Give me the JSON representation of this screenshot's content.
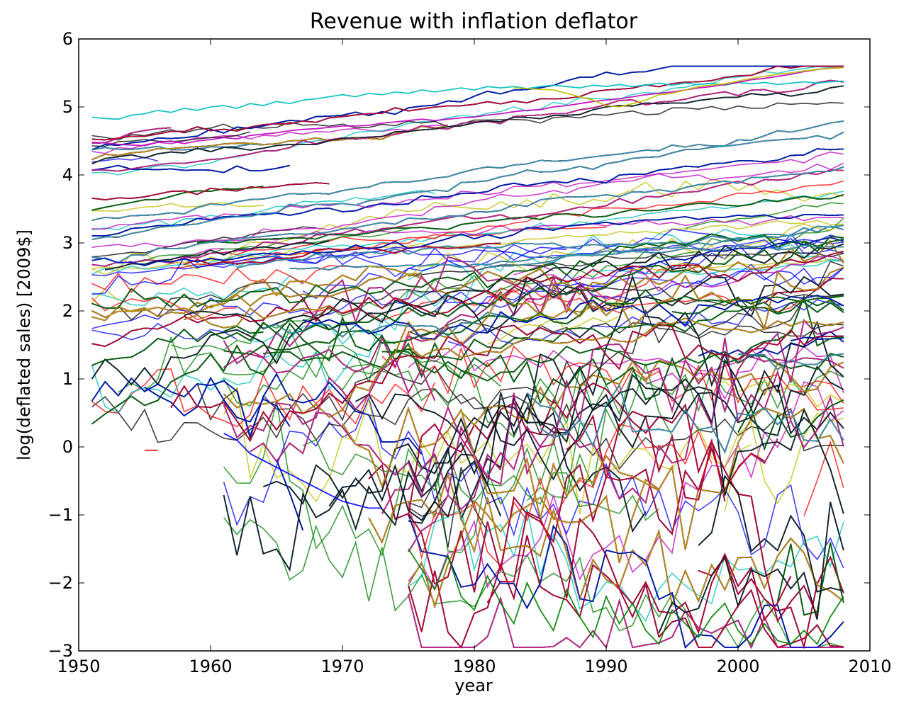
{
  "chart_data": {
    "type": "line",
    "title": "Revenue with inflation deflator",
    "xlabel": "year",
    "ylabel": "log(deflated sales) [2009$]",
    "xlim": [
      1950,
      2010
    ],
    "ylim": [
      -3,
      6
    ],
    "x_ticks": [
      "1950",
      "1960",
      "1970",
      "1980",
      "1990",
      "2000",
      "2010"
    ],
    "y_ticks": [
      "−3",
      "−2",
      "−1",
      "0",
      "1",
      "2",
      "3",
      "4",
      "5",
      "6"
    ],
    "grid": false,
    "legend": "none",
    "series_colors": [
      "#ff0000",
      "#0000ff",
      "#008000",
      "#000000",
      "#00bfbf",
      "#bf00bf",
      "#bfbf00"
    ],
    "series_alpha": 0.75,
    "series_count_approx": 3000,
    "data_range": {
      "first_year": 1951,
      "last_year": 2008,
      "max_value": 5.6,
      "min_value": -2.95
    },
    "series": [
      {
        "start": 1951,
        "end": 2008,
        "values": [
          4.85,
          4.83,
          4.82,
          4.88,
          4.9,
          4.95,
          4.92,
          4.98,
          4.95,
          5.0,
          5.02,
          4.98,
          5.05,
          5.02,
          5.08,
          5.05,
          5.1,
          5.12,
          5.15,
          5.18,
          5.15,
          5.2,
          5.18,
          5.22,
          5.2,
          5.25,
          5.22,
          5.25,
          5.28,
          5.25,
          5.3,
          5.28,
          5.3,
          5.27,
          5.3,
          5.32,
          5.3,
          5.28,
          5.32,
          5.3,
          5.33,
          5.3,
          5.32,
          5.35,
          5.32,
          5.35,
          5.33,
          5.35,
          5.32,
          5.36,
          5.34,
          5.36,
          5.33,
          5.35,
          5.37,
          5.35,
          5.37,
          5.38
        ]
      },
      {
        "start": 1951,
        "end": 2008,
        "values": [
          4.48,
          4.47,
          4.45,
          4.44,
          4.43,
          4.48,
          4.5,
          4.46,
          4.5,
          4.52,
          4.55,
          4.53,
          4.58,
          4.6,
          4.62,
          4.65,
          4.67,
          4.68,
          4.7,
          4.72,
          4.72,
          4.73,
          4.76,
          4.78,
          4.8,
          4.82,
          4.8,
          4.82,
          4.84,
          4.85,
          4.88,
          4.9,
          4.93,
          4.95,
          4.96,
          5.0,
          5.02,
          5.05,
          5.08,
          5.1,
          5.12,
          5.15,
          5.18,
          5.2,
          5.22,
          5.25,
          5.28,
          5.3,
          5.33,
          5.36,
          5.4,
          5.42,
          5.45,
          5.48,
          5.52,
          5.55,
          5.57,
          5.58
        ]
      },
      {
        "start": 1983,
        "end": 2008,
        "values": [
          5.28,
          5.27,
          5.26,
          5.25,
          5.2,
          5.15,
          5.1,
          5.02,
          5.0,
          5.05,
          5.1,
          5.18,
          5.2,
          5.25,
          5.3,
          5.32,
          5.34,
          5.38,
          5.42,
          5.45,
          5.48,
          5.5,
          5.53,
          5.55,
          5.57,
          5.58
        ]
      },
      {
        "start": 1955,
        "end": 1956,
        "values": [
          -0.05,
          -0.05
        ]
      },
      {
        "start": 1961,
        "end": 1973,
        "values": [
          0.2,
          0.1,
          -0.1,
          -0.2,
          -0.3,
          -0.4,
          -0.5,
          -0.6,
          -0.7,
          -0.8,
          -0.85,
          -0.9,
          -0.9
        ]
      },
      {
        "start": 1975,
        "end": 2008,
        "values": [
          -1.5,
          -1.8,
          -2.1,
          -1.6,
          -2.2,
          -2.4,
          -1.9,
          -2.3,
          -2.6,
          -2.0,
          -2.4,
          -2.7,
          -2.1,
          -2.5,
          -2.8,
          -2.2,
          -2.6,
          -2.3,
          -2.7,
          -2.9,
          -2.4,
          -2.6,
          -2.8,
          -2.5,
          -2.3,
          -2.7,
          -2.9,
          -2.6,
          -2.85,
          -2.9,
          -2.7,
          -2.9,
          -2.5,
          -2.2
        ]
      }
    ]
  }
}
